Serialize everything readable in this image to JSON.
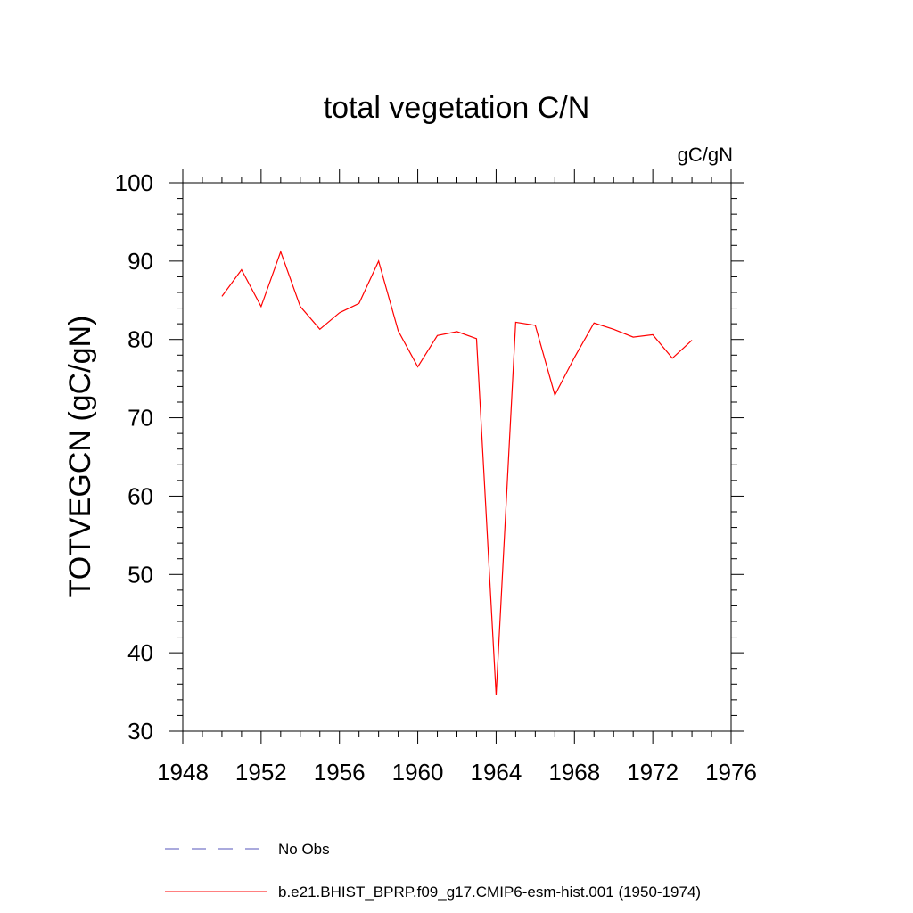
{
  "chart_data": {
    "type": "line",
    "title": "total vegetation C/N",
    "units_label": "gC/gN",
    "ylabel": "TOTVEGCN  (gC/gN)",
    "xlabel": "",
    "xlim": [
      1948,
      1976
    ],
    "ylim": [
      30,
      100
    ],
    "x_ticks": [
      1948,
      1952,
      1956,
      1960,
      1964,
      1968,
      1972,
      1976
    ],
    "y_ticks": [
      30,
      40,
      50,
      60,
      70,
      80,
      90,
      100
    ],
    "x_minor_step": 1,
    "y_minor_step": 2,
    "grid": false,
    "legend_position": "bottom",
    "series": [
      {
        "name": "b.e21.BHIST_BPRP.f09_g17.CMIP6-esm-hist.001 (1950-1974)",
        "color": "#ff0000",
        "x": [
          1950,
          1951,
          1952,
          1953,
          1954,
          1955,
          1956,
          1957,
          1958,
          1959,
          1960,
          1961,
          1962,
          1963,
          1964,
          1965,
          1966,
          1967,
          1968,
          1969,
          1970,
          1971,
          1972,
          1973,
          1974
        ],
        "y": [
          85.5,
          88.9,
          84.2,
          91.2,
          84.2,
          81.3,
          83.4,
          84.6,
          90.0,
          81.1,
          76.5,
          80.5,
          81.0,
          80.1,
          34.6,
          82.2,
          81.8,
          72.9,
          77.7,
          82.1,
          81.3,
          80.3,
          80.6,
          77.6,
          79.9
        ]
      }
    ],
    "legend": [
      {
        "label": "No Obs",
        "color": "#5555bb",
        "style": "dashed"
      },
      {
        "label": "b.e21.BHIST_BPRP.f09_g17.CMIP6-esm-hist.001 (1950-1974)",
        "color": "#ff0000",
        "style": "solid"
      }
    ]
  }
}
